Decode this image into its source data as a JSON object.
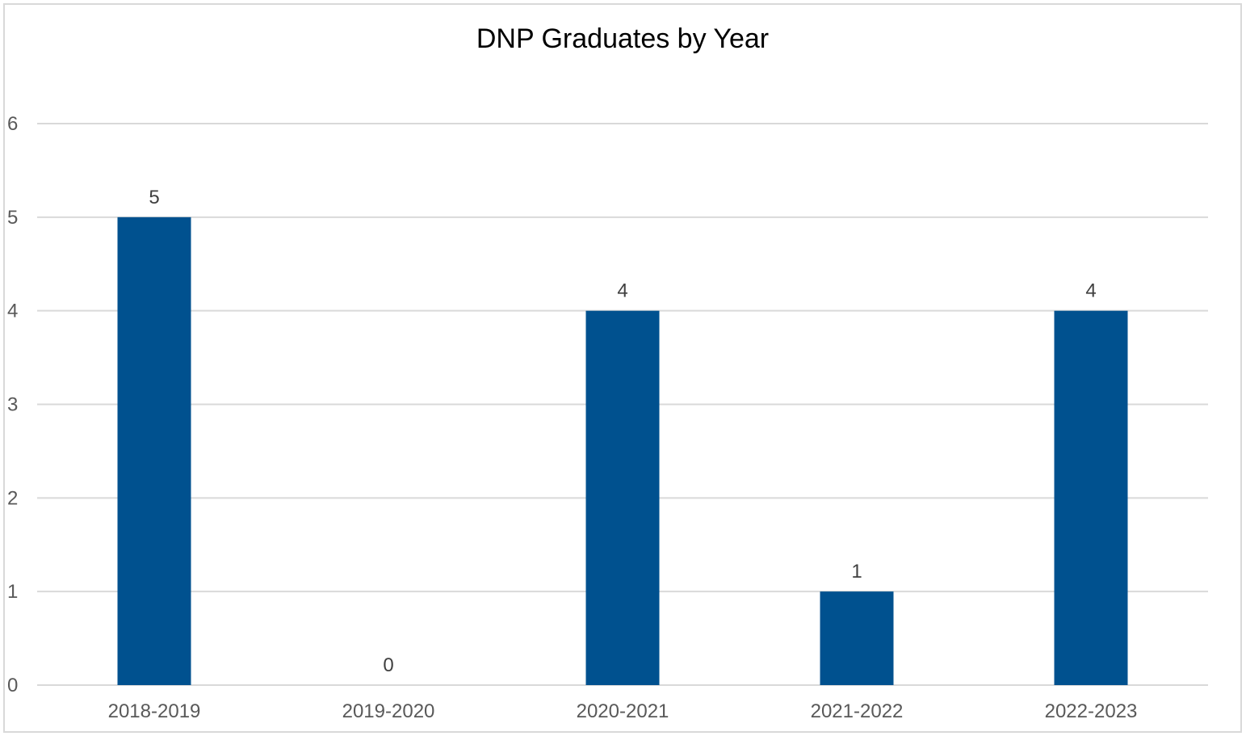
{
  "chart_data": {
    "type": "bar",
    "title": "DNP Graduates by Year",
    "xlabel": "",
    "ylabel": "",
    "categories": [
      "2018-2019",
      "2019-2020",
      "2020-2021",
      "2021-2022",
      "2022-2023"
    ],
    "values": [
      5,
      0,
      4,
      1,
      4
    ],
    "ylim": [
      0,
      6
    ],
    "yticks": [
      0,
      1,
      2,
      3,
      4,
      5,
      6
    ],
    "grid": true,
    "legend": "none",
    "data_labels": true,
    "bar_color": "#00518F"
  }
}
